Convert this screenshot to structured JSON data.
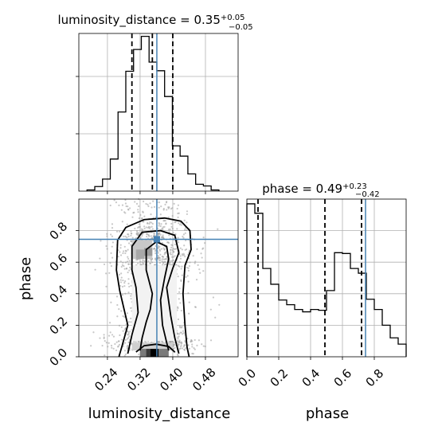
{
  "chart_data": [
    {
      "type": "histogram",
      "title": "luminosity_distance = 0.35",
      "title_sup": "+0.05",
      "title_sub": "−0.05",
      "x_range": [
        0.17,
        0.56
      ],
      "y_range": [
        0,
        2750
      ],
      "grid": true,
      "bin_edges": [
        0.19,
        0.209,
        0.228,
        0.247,
        0.266,
        0.285,
        0.304,
        0.323,
        0.342,
        0.361,
        0.38,
        0.399,
        0.418,
        0.437,
        0.456,
        0.475,
        0.494,
        0.513
      ],
      "counts": [
        20,
        80,
        210,
        560,
        1380,
        2090,
        2470,
        2700,
        2250,
        2100,
        1650,
        790,
        610,
        300,
        120,
        90,
        20
      ],
      "quantiles": [
        0.3,
        0.35,
        0.4
      ],
      "truth": 0.361
    },
    {
      "type": "histogram",
      "title": "phase = 0.49",
      "title_sup": "+0.23",
      "title_sub": "−0.42",
      "x_range": [
        0.0,
        1.0
      ],
      "y_range": [
        0,
        1000
      ],
      "grid": true,
      "bin_edges": [
        0.0,
        0.05,
        0.1,
        0.15,
        0.2,
        0.25,
        0.3,
        0.35,
        0.4,
        0.45,
        0.5,
        0.55,
        0.6,
        0.65,
        0.7,
        0.75,
        0.8,
        0.85,
        0.9,
        0.95,
        1.0
      ],
      "counts": [
        970,
        910,
        560,
        460,
        360,
        330,
        300,
        285,
        300,
        295,
        420,
        660,
        655,
        560,
        530,
        365,
        300,
        200,
        120,
        80
      ],
      "quantiles": [
        0.07,
        0.49,
        0.72
      ],
      "truth": 0.745
    },
    {
      "type": "scatter",
      "subtype": "2d-density-contour",
      "xlabel": "luminosity_distance",
      "ylabel": "phase",
      "x_ticks": [
        0.24,
        0.32,
        0.4,
        0.48
      ],
      "y_ticks": [
        0.0,
        0.2,
        0.4,
        0.6,
        0.8
      ],
      "x_range": [
        0.17,
        0.56
      ],
      "y_range": [
        0.0,
        1.0
      ],
      "grid": true,
      "truth": {
        "x": 0.361,
        "y": 0.745
      }
    }
  ],
  "colors": {
    "truth": "#4682b4",
    "hist": "#000000",
    "scatter": "#9a9a9a"
  },
  "phase_axis": {
    "label": "phase",
    "ticks": [
      0.0,
      0.2,
      0.4,
      0.6,
      0.8
    ]
  }
}
